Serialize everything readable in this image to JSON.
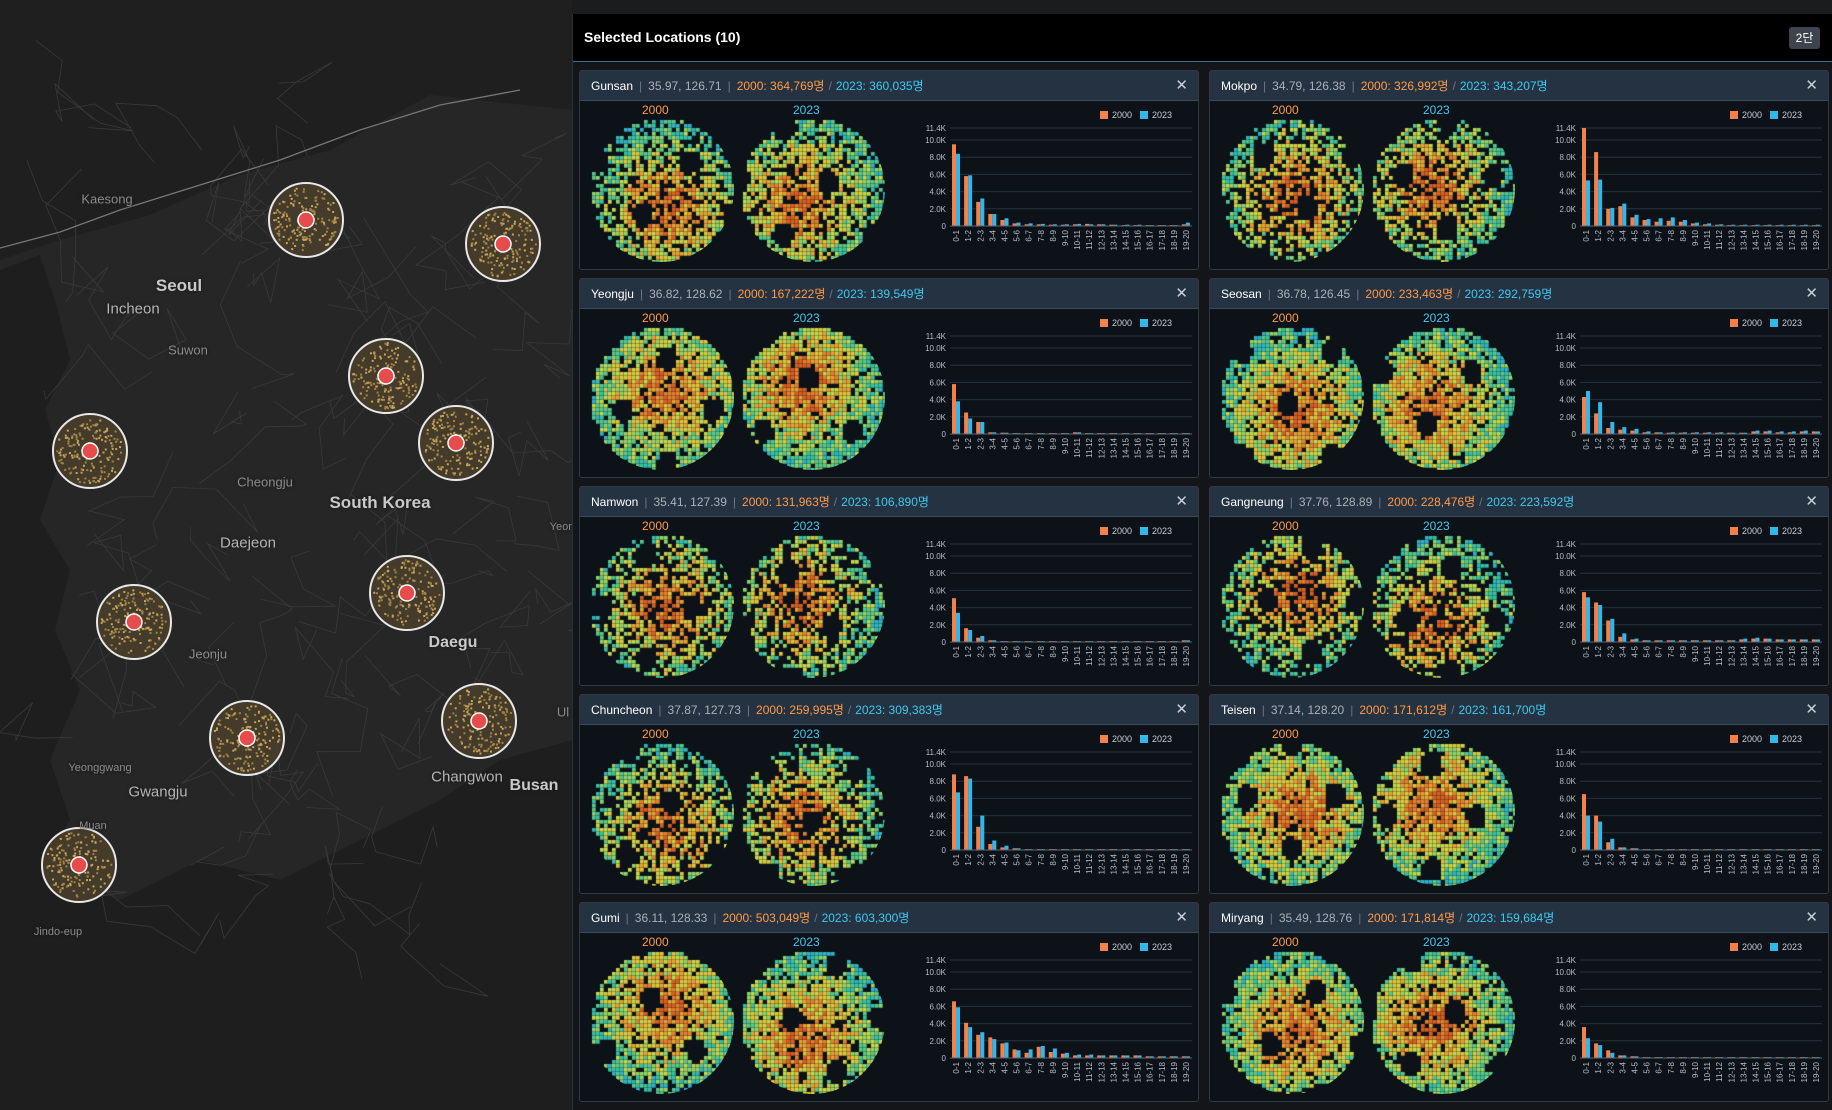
{
  "map": {
    "places": [
      {
        "name": "Kaesong",
        "size": "sm"
      },
      {
        "name": "Seoul",
        "size": "big"
      },
      {
        "name": "Incheon",
        "size": "med"
      },
      {
        "name": "Suwon",
        "size": "sm"
      },
      {
        "name": "Cheongju",
        "size": "sm"
      },
      {
        "name": "South Korea",
        "size": "big"
      },
      {
        "name": "Daejeon",
        "size": "med"
      },
      {
        "name": "Daegu",
        "size": "big"
      },
      {
        "name": "Jeonju",
        "size": "sm"
      },
      {
        "name": "Yeonggwang",
        "size": "sm"
      },
      {
        "name": "Gwangju",
        "size": "med"
      },
      {
        "name": "Changwon",
        "size": "med"
      },
      {
        "name": "Busan",
        "size": "big"
      },
      {
        "name": "Muan",
        "size": "sm"
      },
      {
        "name": "Jindo-eup",
        "size": "sm"
      },
      {
        "name": "Yeon",
        "size": "sm"
      },
      {
        "name": "Ul",
        "size": "sm"
      }
    ],
    "marker_count": 10
  },
  "panel": {
    "title": "Selected Locations (10)",
    "layout_button": "2단"
  },
  "legend": {
    "y2000": "2000",
    "y2023": "2023"
  },
  "colors": {
    "y2000": "#f4804a",
    "y2023": "#33b6ea",
    "header_bg": "#253241"
  },
  "hist_categories": [
    "0-1",
    "1-2",
    "2-3",
    "3-4",
    "4-5",
    "5-6",
    "6-7",
    "7-8",
    "8-9",
    "9-10",
    "10-11",
    "11-12",
    "12-13",
    "13-14",
    "14-15",
    "15-16",
    "16-17",
    "17-18",
    "18-19",
    "19-20"
  ],
  "hist_ticks": [
    "11.4K",
    "10.0K",
    "8.0K",
    "6.0K",
    "4.0K",
    "2.0K",
    "0"
  ],
  "locations": [
    {
      "name": "Gunsan",
      "coords": "35.97, 126.71",
      "pop2000": "2000: 364,769명",
      "pop2023": "2023: 360,035명",
      "chart_data": {
        "type": "bar",
        "ylim": [
          0,
          11400
        ],
        "series": [
          {
            "name": "2000",
            "values": [
              9500,
              5800,
              2800,
              1400,
              700,
              300,
              200,
              200,
              150,
              150,
              200,
              250,
              200,
              150,
              100,
              100,
              100,
              100,
              100,
              200
            ]
          },
          {
            "name": "2023",
            "values": [
              8400,
              5900,
              3200,
              1400,
              900,
              400,
              300,
              250,
              200,
              200,
              250,
              200,
              200,
              150,
              150,
              150,
              100,
              100,
              100,
              400
            ]
          }
        ]
      }
    },
    {
      "name": "Mokpo",
      "coords": "34.79, 126.38",
      "pop2000": "2000: 326,992명",
      "pop2023": "2023: 343,207명",
      "chart_data": {
        "type": "bar",
        "ylim": [
          0,
          11400
        ],
        "series": [
          {
            "name": "2000",
            "values": [
              11400,
              8600,
              2000,
              2300,
              1000,
              700,
              500,
              600,
              500,
              300,
              200,
              150,
              100,
              100,
              100,
              100,
              100,
              100,
              100,
              100
            ]
          },
          {
            "name": "2023",
            "values": [
              5300,
              5400,
              2100,
              2600,
              1300,
              800,
              900,
              1000,
              700,
              400,
              300,
              200,
              150,
              150,
              150,
              150,
              150,
              150,
              150,
              150
            ]
          }
        ]
      }
    },
    {
      "name": "Yeongju",
      "coords": "36.82, 128.62",
      "pop2000": "2000: 167,222명",
      "pop2023": "2023: 139,549명",
      "chart_data": {
        "type": "bar",
        "ylim": [
          0,
          11400
        ],
        "series": [
          {
            "name": "2000",
            "values": [
              5800,
              2500,
              1400,
              200,
              150,
              100,
              100,
              100,
              100,
              100,
              200,
              100,
              100,
              100,
              100,
              100,
              100,
              100,
              100,
              100
            ]
          },
          {
            "name": "2023",
            "values": [
              3800,
              1800,
              1400,
              200,
              150,
              100,
              100,
              100,
              100,
              100,
              200,
              100,
              100,
              100,
              100,
              100,
              100,
              100,
              100,
              100
            ]
          }
        ]
      }
    },
    {
      "name": "Seosan",
      "coords": "36.78, 126.45",
      "pop2000": "2000: 233,463명",
      "pop2023": "2023: 292,759명",
      "chart_data": {
        "type": "bar",
        "ylim": [
          0,
          11400
        ],
        "series": [
          {
            "name": "2000",
            "values": [
              4300,
              2400,
              700,
              500,
              400,
              200,
              200,
              150,
              150,
              150,
              150,
              150,
              150,
              150,
              300,
              300,
              200,
              200,
              300,
              300
            ]
          },
          {
            "name": "2023",
            "values": [
              5000,
              3700,
              1400,
              800,
              600,
              300,
              200,
              200,
              200,
              200,
              200,
              200,
              150,
              150,
              400,
              400,
              300,
              300,
              400,
              300
            ]
          }
        ]
      }
    },
    {
      "name": "Namwon",
      "coords": "35.41, 127.39",
      "pop2000": "2000: 131,963명",
      "pop2023": "2023: 106,890명",
      "chart_data": {
        "type": "bar",
        "ylim": [
          0,
          11400
        ],
        "series": [
          {
            "name": "2000",
            "values": [
              5100,
              1600,
              500,
              200,
              100,
              100,
              100,
              100,
              100,
              100,
              100,
              100,
              100,
              100,
              100,
              100,
              100,
              100,
              100,
              200
            ]
          },
          {
            "name": "2023",
            "values": [
              3400,
              1400,
              700,
              200,
              100,
              100,
              100,
              100,
              100,
              100,
              100,
              100,
              100,
              100,
              100,
              100,
              100,
              100,
              100,
              200
            ]
          }
        ]
      }
    },
    {
      "name": "Gangneung",
      "coords": "37.76, 128.89",
      "pop2000": "2000: 228,476명",
      "pop2023": "2023: 223,592명",
      "chart_data": {
        "type": "bar",
        "ylim": [
          0,
          11400
        ],
        "series": [
          {
            "name": "2000",
            "values": [
              5800,
              4600,
              2500,
              600,
              300,
              200,
              200,
              200,
              200,
              200,
              200,
              200,
              200,
              300,
              400,
              400,
              300,
              300,
              300,
              300
            ]
          },
          {
            "name": "2023",
            "values": [
              5200,
              4300,
              2700,
              1000,
              400,
              200,
              200,
              200,
              200,
              200,
              200,
              200,
              200,
              400,
              500,
              400,
              300,
              300,
              300,
              300
            ]
          }
        ]
      }
    },
    {
      "name": "Chuncheon",
      "coords": "37.87, 127.73",
      "pop2000": "2000: 259,995명",
      "pop2023": "2023: 309,383명",
      "chart_data": {
        "type": "bar",
        "ylim": [
          0,
          11400
        ],
        "series": [
          {
            "name": "2000",
            "values": [
              8800,
              8600,
              2700,
              700,
              300,
              200,
              100,
              100,
              100,
              100,
              100,
              100,
              100,
              100,
              100,
              100,
              100,
              100,
              100,
              100
            ]
          },
          {
            "name": "2023",
            "values": [
              6700,
              8300,
              4000,
              1100,
              500,
              200,
              100,
              100,
              100,
              100,
              100,
              100,
              100,
              100,
              100,
              100,
              100,
              100,
              100,
              100
            ]
          }
        ]
      }
    },
    {
      "name": "Teisen",
      "coords": "37.14, 128.20",
      "pop2000": "2000: 171,612명",
      "pop2023": "2023: 161,700명",
      "chart_data": {
        "type": "bar",
        "ylim": [
          0,
          11400
        ],
        "series": [
          {
            "name": "2000",
            "values": [
              6500,
              4000,
              900,
              300,
              200,
              100,
              100,
              100,
              100,
              100,
              100,
              100,
              100,
              100,
              100,
              100,
              100,
              100,
              100,
              100
            ]
          },
          {
            "name": "2023",
            "values": [
              4000,
              3300,
              1300,
              300,
              200,
              100,
              100,
              100,
              100,
              100,
              100,
              100,
              100,
              100,
              100,
              100,
              100,
              100,
              100,
              100
            ]
          }
        ]
      }
    },
    {
      "name": "Gumi",
      "coords": "36.11, 128.33",
      "pop2000": "2000: 503,049명",
      "pop2023": "2023: 603,300명",
      "chart_data": {
        "type": "bar",
        "ylim": [
          0,
          11400
        ],
        "series": [
          {
            "name": "2000",
            "values": [
              6600,
              4100,
              2700,
              2400,
              1700,
              1000,
              600,
              1300,
              700,
              500,
              300,
              300,
              300,
              300,
              300,
              300,
              200,
              200,
              200,
              200
            ]
          },
          {
            "name": "2023",
            "values": [
              5900,
              3600,
              3000,
              2200,
              1800,
              900,
              1000,
              1400,
              1100,
              600,
              400,
              400,
              300,
              300,
              300,
              300,
              200,
              200,
              200,
              200
            ]
          }
        ]
      }
    },
    {
      "name": "Miryang",
      "coords": "35.49, 128.76",
      "pop2000": "2000: 171,814명",
      "pop2023": "2023: 159,684명",
      "chart_data": {
        "type": "bar",
        "ylim": [
          0,
          11400
        ],
        "series": [
          {
            "name": "2000",
            "values": [
              3600,
              1700,
              900,
              300,
              200,
              100,
              100,
              100,
              100,
              100,
              100,
              100,
              100,
              100,
              100,
              100,
              100,
              100,
              100,
              100
            ]
          },
          {
            "name": "2023",
            "values": [
              2300,
              1500,
              600,
              300,
              200,
              100,
              100,
              100,
              100,
              100,
              100,
              100,
              100,
              100,
              100,
              100,
              100,
              100,
              100,
              100
            ]
          }
        ]
      }
    }
  ]
}
